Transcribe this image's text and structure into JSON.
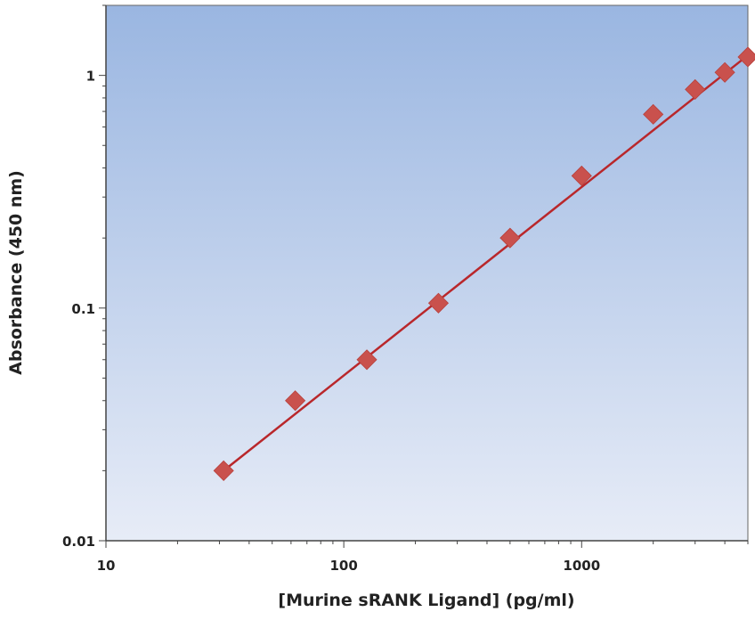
{
  "chart_data": {
    "type": "scatter",
    "title": "",
    "xlabel": "[Murine sRANK Ligand] (pg/ml)",
    "ylabel": "Absorbance (450 nm)",
    "x_scale": "log",
    "y_scale": "log",
    "xlim": [
      10,
      5000
    ],
    "ylim": [
      0.01,
      2
    ],
    "x_tick_labels": [
      "10",
      "100",
      "1000"
    ],
    "y_tick_labels": [
      "0.01",
      "0.1",
      "1"
    ],
    "grid": false,
    "legend": "none",
    "series": [
      {
        "marker": "diamond",
        "x": [
          31.25,
          62.5,
          125,
          250,
          500,
          1000,
          2000,
          3000,
          4000,
          5000
        ],
        "y": [
          0.02,
          0.04,
          0.06,
          0.105,
          0.2,
          0.37,
          0.68,
          0.87,
          1.03,
          1.2
        ]
      }
    ],
    "fit_line": {
      "x": [
        31.25,
        5000
      ],
      "y": [
        0.02,
        1.22
      ]
    },
    "colors": {
      "marker": "#c9514d",
      "line": "#b9272b",
      "bg_top": "#9ab6e1",
      "bg_bottom": "#e7ecf7",
      "axis": "#444444"
    }
  }
}
